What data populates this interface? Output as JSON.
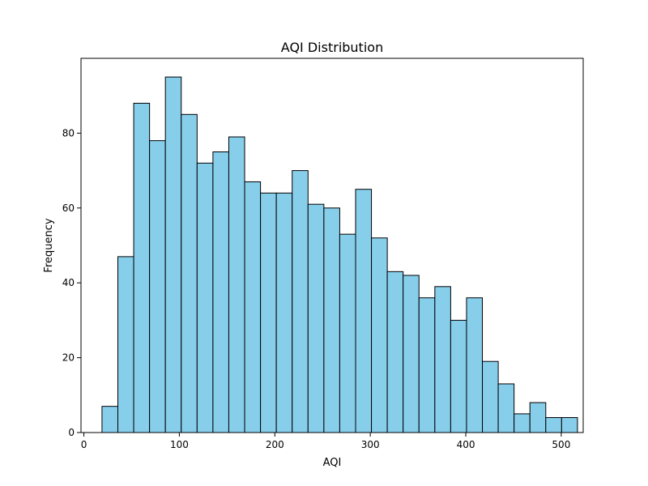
{
  "chart_data": {
    "type": "bar",
    "title": "AQI Distribution",
    "xlabel": "AQI",
    "ylabel": "Frequency",
    "xlim": [
      -3,
      523
    ],
    "ylim": [
      0,
      100
    ],
    "x_ticks": [
      0,
      100,
      200,
      300,
      400,
      500
    ],
    "y_ticks": [
      0,
      20,
      40,
      60,
      80
    ],
    "bin_start": 19,
    "bin_width": 16.6,
    "values": [
      7,
      47,
      88,
      78,
      95,
      85,
      72,
      75,
      79,
      67,
      64,
      64,
      70,
      61,
      60,
      53,
      65,
      52,
      43,
      42,
      36,
      39,
      30,
      36,
      19,
      13,
      5,
      8,
      4,
      4
    ],
    "bar_color": "#87ceeb",
    "edge_color": "#000000",
    "grid": false
  }
}
